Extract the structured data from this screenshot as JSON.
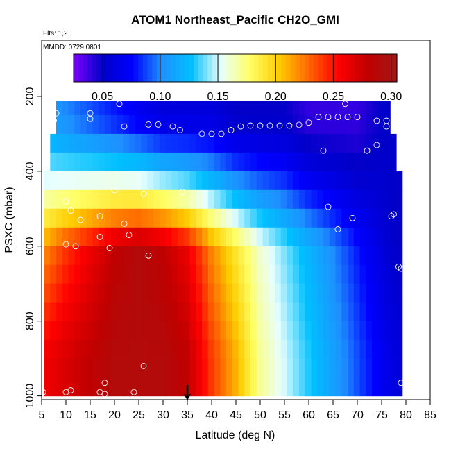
{
  "chart_data": {
    "type": "heatmap",
    "title": "ATOM1 Northeast_Pacific CH2O_GMI",
    "flights_note": "Flts: 1,2",
    "date_note": "MMDD: 0729,0801",
    "xlabel": "Latitude (deg N)",
    "ylabel": "PSXC (mbar)",
    "xlim": [
      5,
      85
    ],
    "ylim_inverted": [
      1010,
      50
    ],
    "x_ticks": [
      "5",
      "10",
      "15",
      "20",
      "25",
      "30",
      "35",
      "40",
      "45",
      "50",
      "55",
      "60",
      "65",
      "70",
      "75",
      "80",
      "85"
    ],
    "y_ticks": [
      "200",
      "400",
      "600",
      "800",
      "1000"
    ],
    "colorbar": {
      "range": [
        0.025,
        0.305
      ],
      "ticks": [
        "0.05",
        "0.10",
        "0.15",
        "0.20",
        "0.25",
        "0.30"
      ],
      "colors": [
        "#7b00ff",
        "#0000c8",
        "#0000ff",
        "#1e90ff",
        "#00c0ff",
        "#e8ffff",
        "#ffff66",
        "#ffcc00",
        "#ff6600",
        "#ff0000",
        "#c00000",
        "#a01818"
      ]
    },
    "field_description_levels_mbar": [
      225,
      275,
      325,
      375,
      425,
      475,
      525,
      575,
      625,
      675,
      725,
      775,
      825,
      875,
      925,
      975,
      1000
    ],
    "field_profile_at_latitude": {
      "latitudes": [
        6,
        10,
        15,
        20,
        25,
        30,
        35,
        40,
        45,
        50,
        55,
        60,
        65,
        70,
        75,
        78
      ],
      "ch2o_ppbv_at_600mb": [
        0.22,
        0.24,
        0.26,
        0.28,
        0.29,
        0.28,
        0.26,
        0.22,
        0.19,
        0.16,
        0.14,
        0.12,
        0.1,
        0.08,
        0.06,
        0.05
      ],
      "ch2o_ppbv_at_900mb": [
        0.26,
        0.27,
        0.28,
        0.29,
        0.29,
        0.29,
        0.28,
        0.24,
        0.21,
        0.17,
        0.15,
        0.13,
        0.11,
        0.09,
        0.07,
        0.06
      ],
      "ch2o_ppbv_at_250mb": [
        0.11,
        0.1,
        0.09,
        0.08,
        0.07,
        0.06,
        0.06,
        0.06,
        0.05,
        0.05,
        0.05,
        0.04,
        0.04,
        0.04,
        0.05,
        0.05
      ]
    },
    "arrow_marker_latitude": 35
  }
}
